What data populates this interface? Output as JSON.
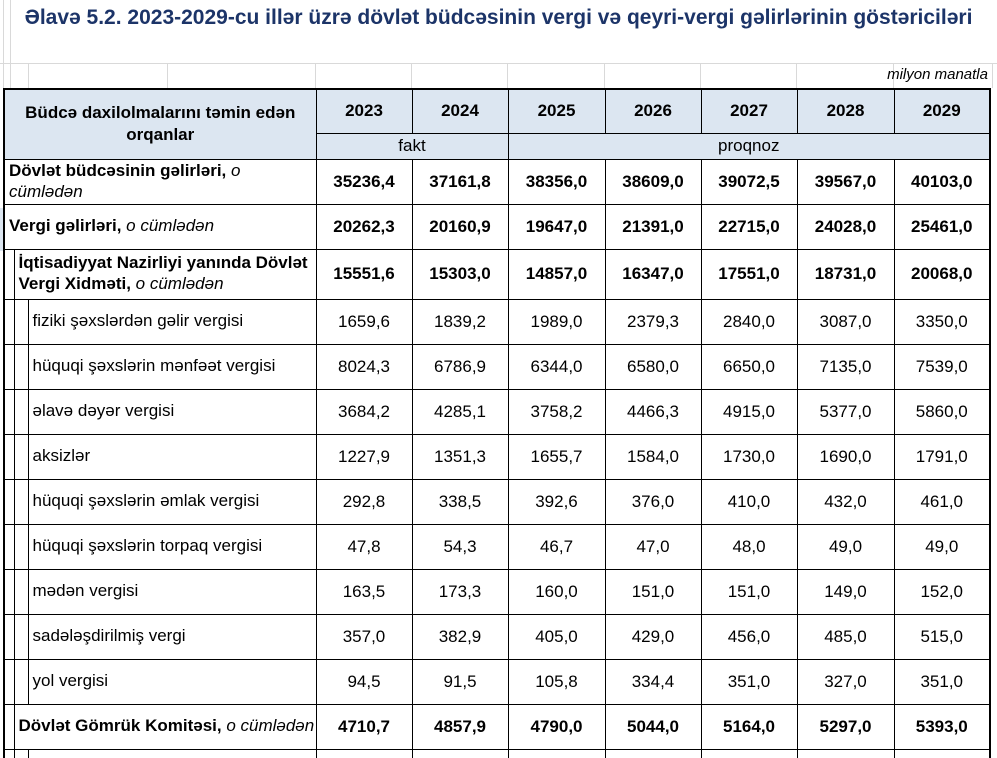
{
  "title": "Əlavə 5.2. 2023-2029-cu illər üzrə dövlət büdcəsinin vergi və qeyri-vergi gəlirlərinin göstəriciləri",
  "unit_note": "milyon manatla",
  "colors": {
    "title": "#1c3468",
    "header_bg": "#dce6f1",
    "tax_row_red": "#ff0000",
    "border": "#000000"
  },
  "table": {
    "header": {
      "label": "Büdcə daxilolmalarını təmin edən orqanlar",
      "years": [
        "2023",
        "2024",
        "2025",
        "2026",
        "2027",
        "2028",
        "2029"
      ],
      "groups": [
        {
          "label": "fakt",
          "span": 2
        },
        {
          "label": "proqnoz",
          "span": 5
        }
      ]
    },
    "rows": [
      {
        "label": "Dövlət büdcəsinin gəlirləri,",
        "suffix": " o cümlədən",
        "level": 0,
        "bold": true,
        "color": "black",
        "values": [
          "35236,4",
          "37161,8",
          "38356,0",
          "38609,0",
          "39072,5",
          "39567,0",
          "40103,0"
        ]
      },
      {
        "label": "Vergi gəlirləri,",
        "suffix": " o cümlədən",
        "level": 0,
        "bold": true,
        "color": "red",
        "values": [
          "20262,3",
          "20160,9",
          "19647,0",
          "21391,0",
          "22715,0",
          "24028,0",
          "25461,0"
        ]
      },
      {
        "label": "İqtisadiyyat Nazirliyi yanında Dövlət Vergi Xidməti,",
        "suffix": " o cümlədən",
        "level": 1,
        "bold": true,
        "color": "black",
        "tall": true,
        "values": [
          "15551,6",
          "15303,0",
          "14857,0",
          "16347,0",
          "17551,0",
          "18731,0",
          "20068,0"
        ]
      },
      {
        "label": "fiziki şəxslərdən gəlir vergisi",
        "suffix": "",
        "level": 2,
        "bold": false,
        "color": "black",
        "values": [
          "1659,6",
          "1839,2",
          "1989,0",
          "2379,3",
          "2840,0",
          "3087,0",
          "3350,0"
        ]
      },
      {
        "label": "hüquqi şəxslərin mənfəət vergisi",
        "suffix": "",
        "level": 2,
        "bold": false,
        "color": "black",
        "values": [
          "8024,3",
          "6786,9",
          "6344,0",
          "6580,0",
          "6650,0",
          "7135,0",
          "7539,0"
        ]
      },
      {
        "label": "əlavə dəyər vergisi",
        "suffix": "",
        "level": 2,
        "bold": false,
        "color": "black",
        "values": [
          "3684,2",
          "4285,1",
          "3758,2",
          "4466,3",
          "4915,0",
          "5377,0",
          "5860,0"
        ]
      },
      {
        "label": "aksizlər",
        "suffix": "",
        "level": 2,
        "bold": false,
        "color": "black",
        "values": [
          "1227,9",
          "1351,3",
          "1655,7",
          "1584,0",
          "1730,0",
          "1690,0",
          "1791,0"
        ]
      },
      {
        "label": "hüquqi şəxslərin əmlak vergisi",
        "suffix": "",
        "level": 2,
        "bold": false,
        "color": "black",
        "values": [
          "292,8",
          "338,5",
          "392,6",
          "376,0",
          "410,0",
          "432,0",
          "461,0"
        ]
      },
      {
        "label": "hüquqi şəxslərin torpaq vergisi",
        "suffix": "",
        "level": 2,
        "bold": false,
        "color": "black",
        "values": [
          "47,8",
          "54,3",
          "46,7",
          "47,0",
          "48,0",
          "49,0",
          "49,0"
        ]
      },
      {
        "label": "mədən vergisi",
        "suffix": "",
        "level": 2,
        "bold": false,
        "color": "black",
        "values": [
          "163,5",
          "173,3",
          "160,0",
          "151,0",
          "151,0",
          "149,0",
          "152,0"
        ]
      },
      {
        "label": "sadələşdirilmiş  vergi",
        "suffix": "",
        "level": 2,
        "bold": false,
        "color": "black",
        "values": [
          "357,0",
          "382,9",
          "405,0",
          "429,0",
          "456,0",
          "485,0",
          "515,0"
        ]
      },
      {
        "label": "yol vergisi",
        "suffix": "",
        "level": 2,
        "bold": false,
        "color": "black",
        "values": [
          "94,5",
          "91,5",
          "105,8",
          "334,4",
          "351,0",
          "327,0",
          "351,0"
        ]
      },
      {
        "label": "Dövlət Gömrük Komitəsi,",
        "suffix": " o cümlədən",
        "level": 1,
        "bold": true,
        "color": "black",
        "values": [
          "4710,7",
          "4857,9",
          "4790,0",
          "5044,0",
          "5164,0",
          "5297,0",
          "5393,0"
        ]
      },
      {
        "label": "",
        "suffix": "",
        "level": 2,
        "bold": false,
        "color": "black",
        "partial": true,
        "values": [
          "",
          "",
          "",
          "",
          "",
          "",
          ""
        ]
      }
    ]
  }
}
